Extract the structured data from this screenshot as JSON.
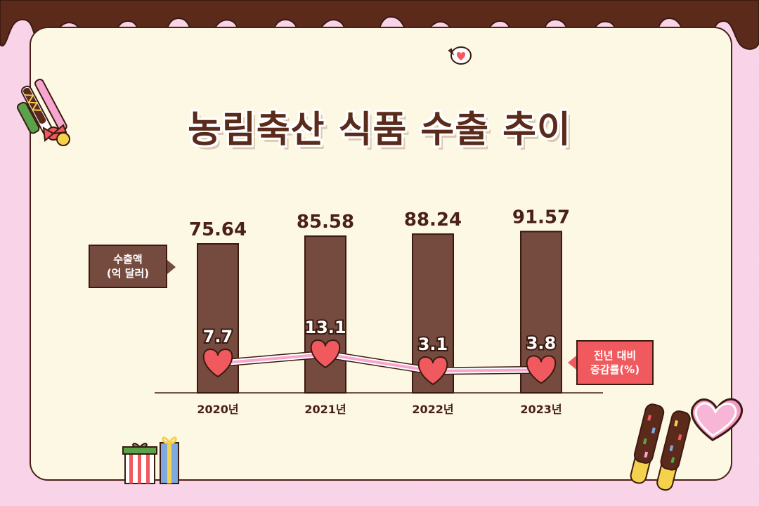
{
  "title": "농림축산 식품 수출 추이",
  "legend": {
    "export_line1": "수출액",
    "export_line2": "(억 달러)",
    "growth_line1": "전년 대비",
    "growth_line2": "증감률(%)"
  },
  "colors": {
    "bar": "#754a3f",
    "heart": "#f05a5e",
    "line": "#f7a6cf",
    "text_dark": "#4a2018",
    "card": "#fdf8e3",
    "background": "#f9d3e8",
    "chocolate": "#5b2a1b"
  },
  "chart_data": {
    "type": "bar",
    "categories": [
      "2020년",
      "2021년",
      "2022년",
      "2023년"
    ],
    "series": [
      {
        "name": "수출액 (억 달러)",
        "type": "bar",
        "values": [
          75.64,
          85.58,
          88.24,
          91.57
        ]
      },
      {
        "name": "전년 대비 증감률(%)",
        "type": "line",
        "values": [
          7.7,
          13.1,
          3.1,
          3.8
        ]
      }
    ],
    "title": "농림축산 식품 수출 추이",
    "xlabel": "",
    "ylabel": "",
    "grid": false
  }
}
